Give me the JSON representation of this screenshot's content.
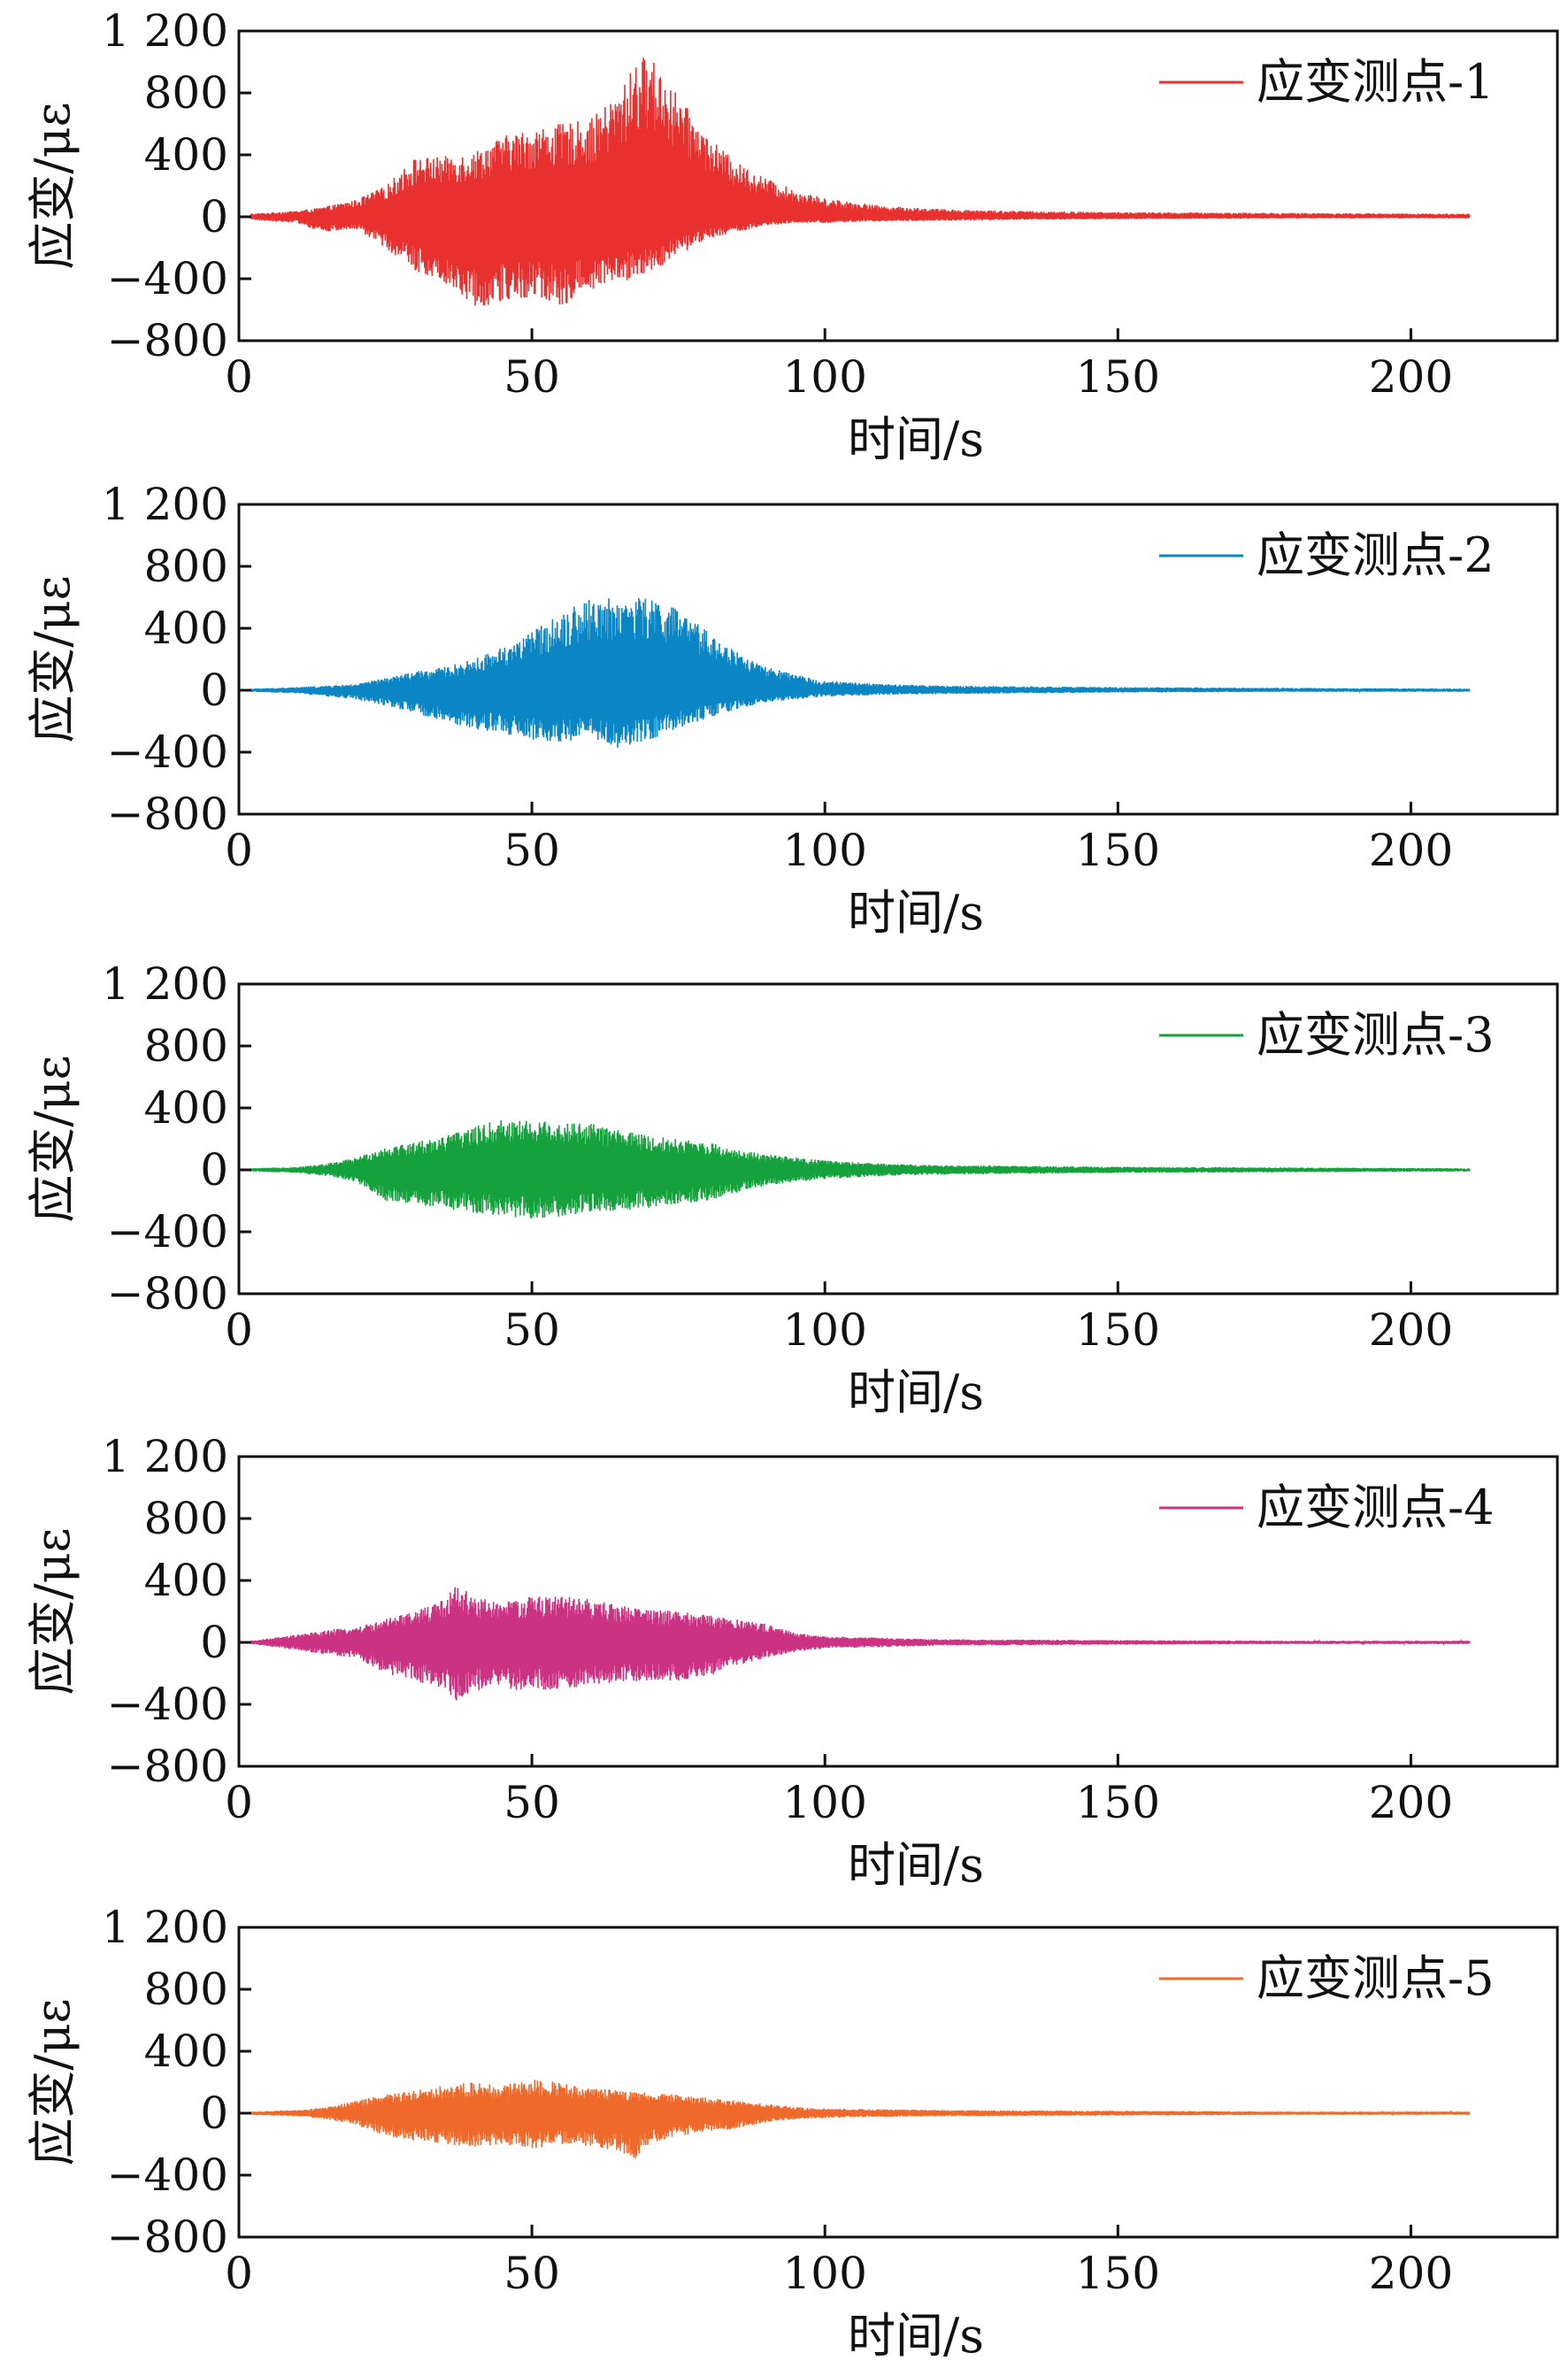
{
  "chart_data": [
    {
      "type": "line",
      "title": "",
      "xlabel": "时间/s",
      "ylabel": "应变/με",
      "xlim": [
        0,
        225
      ],
      "ylim": [
        -800,
        1200
      ],
      "x_ticks": [
        0,
        50,
        100,
        150,
        200
      ],
      "x_tick_labels": [
        "0",
        "50",
        "100",
        "150",
        "200"
      ],
      "y_ticks": [
        -800,
        -400,
        0,
        400,
        800,
        1200
      ],
      "y_tick_labels": [
        "−800",
        "−400",
        "0",
        "400",
        "800",
        "1 200"
      ],
      "grid": false,
      "legend_position": "top-right",
      "series": [
        {
          "name": "应变测点-1",
          "color": "#e8312f",
          "x": [
            2,
            10,
            14,
            20,
            25,
            30,
            35,
            40,
            45,
            50,
            55,
            60,
            65,
            68,
            70,
            72,
            75,
            80,
            85,
            90,
            95,
            100,
            110,
            120,
            130,
            150,
            180,
            210
          ],
          "max": [
            20,
            40,
            60,
            110,
            200,
            380,
            390,
            420,
            520,
            570,
            600,
            630,
            800,
            1030,
            1040,
            950,
            780,
            520,
            350,
            250,
            170,
            120,
            70,
            50,
            40,
            30,
            25,
            20
          ],
          "min": [
            -20,
            -40,
            -100,
            -80,
            -200,
            -350,
            -420,
            -580,
            -560,
            -520,
            -580,
            -470,
            -420,
            -400,
            -350,
            -320,
            -250,
            -140,
            -100,
            -60,
            -40,
            -40,
            -30,
            -25,
            -20,
            -15,
            -10,
            -10
          ]
        }
      ]
    },
    {
      "type": "line",
      "title": "",
      "xlabel": "时间/s",
      "ylabel": "应变/με",
      "xlim": [
        0,
        225
      ],
      "ylim": [
        -800,
        1200
      ],
      "x_ticks": [
        0,
        50,
        100,
        150,
        200
      ],
      "x_tick_labels": [
        "0",
        "50",
        "100",
        "150",
        "200"
      ],
      "y_ticks": [
        -800,
        -400,
        0,
        400,
        800,
        1200
      ],
      "y_tick_labels": [
        "−800",
        "−400",
        "0",
        "400",
        "800",
        "1 200"
      ],
      "grid": false,
      "legend_position": "top-right",
      "series": [
        {
          "name": "应变测点-2",
          "color": "#0a86c4",
          "x": [
            2,
            10,
            20,
            25,
            30,
            35,
            40,
            45,
            50,
            55,
            58,
            60,
            65,
            70,
            72,
            75,
            80,
            85,
            90,
            95,
            100,
            110,
            120,
            150,
            180,
            210
          ],
          "max": [
            10,
            20,
            40,
            80,
            120,
            150,
            200,
            280,
            380,
            500,
            560,
            590,
            600,
            600,
            580,
            520,
            380,
            250,
            150,
            100,
            60,
            40,
            30,
            20,
            15,
            10
          ],
          "min": [
            -10,
            -20,
            -60,
            -100,
            -150,
            -200,
            -250,
            -280,
            -320,
            -350,
            -330,
            -300,
            -380,
            -320,
            -300,
            -250,
            -180,
            -120,
            -80,
            -60,
            -40,
            -30,
            -25,
            -15,
            -10,
            -10
          ]
        }
      ]
    },
    {
      "type": "line",
      "title": "",
      "xlabel": "时间/s",
      "ylabel": "应变/με",
      "xlim": [
        0,
        225
      ],
      "ylim": [
        -800,
        1200
      ],
      "x_ticks": [
        0,
        50,
        100,
        150,
        200
      ],
      "x_tick_labels": [
        "0",
        "50",
        "100",
        "150",
        "200"
      ],
      "y_ticks": [
        -800,
        -400,
        0,
        400,
        800,
        1200
      ],
      "y_tick_labels": [
        "−800",
        "−400",
        "0",
        "400",
        "800",
        "1 200"
      ],
      "grid": false,
      "legend_position": "top-right",
      "series": [
        {
          "name": "应变测点-3",
          "color": "#15a23c",
          "x": [
            2,
            10,
            15,
            20,
            25,
            30,
            35,
            40,
            45,
            50,
            55,
            60,
            65,
            70,
            75,
            80,
            85,
            90,
            95,
            100,
            110,
            120,
            150,
            180,
            210
          ],
          "max": [
            10,
            20,
            40,
            80,
            150,
            180,
            220,
            280,
            330,
            320,
            310,
            300,
            260,
            220,
            200,
            180,
            130,
            100,
            80,
            60,
            40,
            30,
            20,
            15,
            10
          ],
          "min": [
            -10,
            -20,
            -40,
            -80,
            -200,
            -220,
            -250,
            -280,
            -300,
            -320,
            -300,
            -280,
            -260,
            -250,
            -220,
            -200,
            -150,
            -100,
            -80,
            -60,
            -40,
            -30,
            -20,
            -15,
            -10
          ]
        }
      ]
    },
    {
      "type": "line",
      "title": "",
      "xlabel": "时间/s",
      "ylabel": "应变/με",
      "xlim": [
        0,
        225
      ],
      "ylim": [
        -800,
        1200
      ],
      "x_ticks": [
        0,
        50,
        100,
        150,
        200
      ],
      "x_tick_labels": [
        "0",
        "50",
        "100",
        "150",
        "200"
      ],
      "y_ticks": [
        -800,
        -400,
        0,
        400,
        800,
        1200
      ],
      "y_tick_labels": [
        "−800",
        "−400",
        "0",
        "400",
        "800",
        "1 200"
      ],
      "grid": false,
      "legend_position": "top-right",
      "series": [
        {
          "name": "应变测点-4",
          "color": "#cc3282",
          "x": [
            2,
            10,
            15,
            20,
            25,
            30,
            35,
            37,
            40,
            45,
            50,
            55,
            60,
            65,
            70,
            75,
            80,
            85,
            90,
            95,
            100,
            110,
            120,
            150,
            180,
            210
          ],
          "max": [
            10,
            50,
            80,
            100,
            150,
            200,
            280,
            380,
            300,
            260,
            300,
            300,
            280,
            240,
            220,
            200,
            180,
            150,
            120,
            60,
            40,
            30,
            20,
            15,
            10,
            10
          ],
          "min": [
            -10,
            -50,
            -80,
            -100,
            -200,
            -250,
            -300,
            -380,
            -320,
            -300,
            -320,
            -300,
            -280,
            -260,
            -250,
            -250,
            -220,
            -150,
            -100,
            -60,
            -40,
            -30,
            -20,
            -15,
            -10,
            -10
          ]
        }
      ]
    },
    {
      "type": "line",
      "title": "",
      "xlabel": "时间/s",
      "ylabel": "应变/με",
      "xlim": [
        0,
        225
      ],
      "ylim": [
        -800,
        1200
      ],
      "x_ticks": [
        0,
        50,
        100,
        150,
        200
      ],
      "x_tick_labels": [
        "0",
        "50",
        "100",
        "150",
        "200"
      ],
      "y_ticks": [
        -800,
        -400,
        0,
        400,
        800,
        1200
      ],
      "y_tick_labels": [
        "−800",
        "−400",
        "0",
        "400",
        "800",
        "1 200"
      ],
      "grid": false,
      "legend_position": "top-right",
      "series": [
        {
          "name": "应变测点-5",
          "color": "#ef6a2a",
          "x": [
            2,
            10,
            15,
            20,
            25,
            30,
            35,
            40,
            45,
            50,
            55,
            60,
            65,
            68,
            70,
            75,
            80,
            85,
            90,
            95,
            100,
            110,
            120,
            150,
            180,
            210
          ],
          "max": [
            10,
            20,
            40,
            80,
            120,
            150,
            180,
            200,
            180,
            220,
            200,
            160,
            150,
            140,
            130,
            120,
            100,
            80,
            60,
            40,
            30,
            25,
            20,
            15,
            10,
            10
          ],
          "min": [
            -10,
            -20,
            -40,
            -80,
            -150,
            -180,
            -200,
            -220,
            -200,
            -230,
            -200,
            -220,
            -250,
            -300,
            -200,
            -150,
            -120,
            -100,
            -60,
            -40,
            -30,
            -25,
            -20,
            -15,
            -10,
            -10
          ]
        }
      ]
    }
  ]
}
